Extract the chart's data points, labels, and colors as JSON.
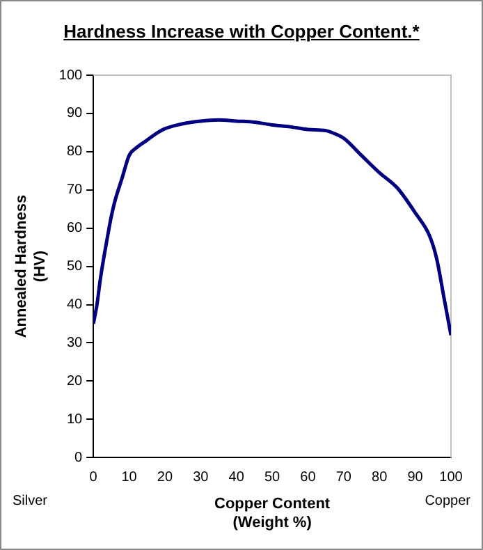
{
  "chart_data": {
    "type": "line",
    "title": "Hardness Increase with Copper Content.*",
    "xlabel": "Copper Content\n(Weight %)",
    "ylabel": "Annealed Hardness\n(HV)",
    "annotations": [
      "Silver",
      "Copper"
    ],
    "x": [
      0,
      1,
      2,
      4,
      5,
      6,
      8,
      10,
      12,
      15,
      18,
      20,
      25,
      30,
      35,
      40,
      45,
      50,
      55,
      60,
      65,
      68,
      70,
      75,
      80,
      85,
      90,
      94,
      96,
      98,
      100
    ],
    "series": [
      {
        "color": "#000080",
        "values": [
          35,
          40,
          47,
          58,
          63,
          67,
          73,
          79,
          81,
          83,
          85,
          86,
          87.3,
          88,
          88.3,
          88,
          87.7,
          87,
          86.5,
          85.8,
          85.5,
          84.5,
          83.5,
          79,
          74.5,
          70.5,
          64,
          58,
          52,
          42,
          32
        ]
      }
    ],
    "xlim": [
      0,
      100
    ],
    "xticks": [
      0,
      10,
      20,
      30,
      40,
      50,
      60,
      70,
      80,
      90,
      100
    ],
    "ylim": [
      0,
      100
    ],
    "yticks": [
      0,
      10,
      20,
      30,
      40,
      50,
      60,
      70,
      80,
      90,
      100
    ],
    "grid": false,
    "legend": false,
    "marker": "none",
    "line_style": "solid"
  }
}
